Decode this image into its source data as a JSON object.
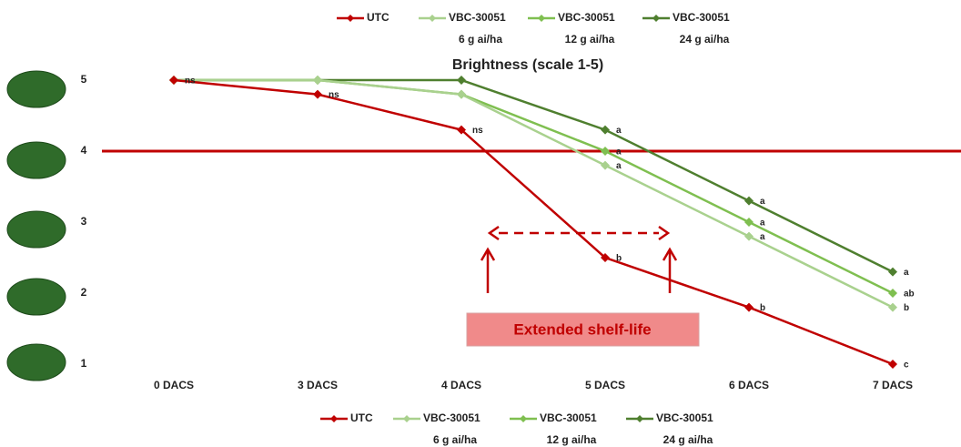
{
  "chart_data": {
    "type": "line",
    "title": "Brightness (scale 1-5)",
    "categories": [
      "0 DACS",
      "3 DACS",
      "4 DACS",
      "5 DACS",
      "6 DACS",
      "7 DACS"
    ],
    "ylim": [
      1,
      5
    ],
    "yticks": [
      1,
      2,
      3,
      4,
      5
    ],
    "reference_line": {
      "value": 4,
      "color": "#c00000"
    },
    "annotation": "Extended shelf-life",
    "series": [
      {
        "name": "UTC",
        "color": "#c00000",
        "values": [
          5,
          4.8,
          4.3,
          2.5,
          1.8,
          1.0
        ],
        "labels": [
          "ns",
          "ns",
          "ns",
          "b",
          "b",
          "c"
        ]
      },
      {
        "name": "VBC-30051",
        "dose": "6 g ai/ha",
        "color": "#a9d18e",
        "values": [
          5,
          5,
          4.8,
          3.8,
          2.8,
          1.8
        ],
        "labels": [
          null,
          null,
          null,
          "a",
          "a",
          "b"
        ]
      },
      {
        "name": "VBC-30051",
        "dose": "12 g ai/ha",
        "color": "#7fbf50",
        "values": [
          5,
          5,
          4.8,
          4.0,
          3.0,
          2.0
        ],
        "labels": [
          null,
          null,
          null,
          "a",
          "a",
          "ab"
        ]
      },
      {
        "name": "VBC-30051",
        "dose": "24 g ai/ha",
        "color": "#4f7f2f",
        "values": [
          5,
          5,
          5,
          4.3,
          3.3,
          2.3
        ],
        "labels": [
          null,
          null,
          null,
          "a",
          "a",
          "a"
        ]
      }
    ]
  }
}
